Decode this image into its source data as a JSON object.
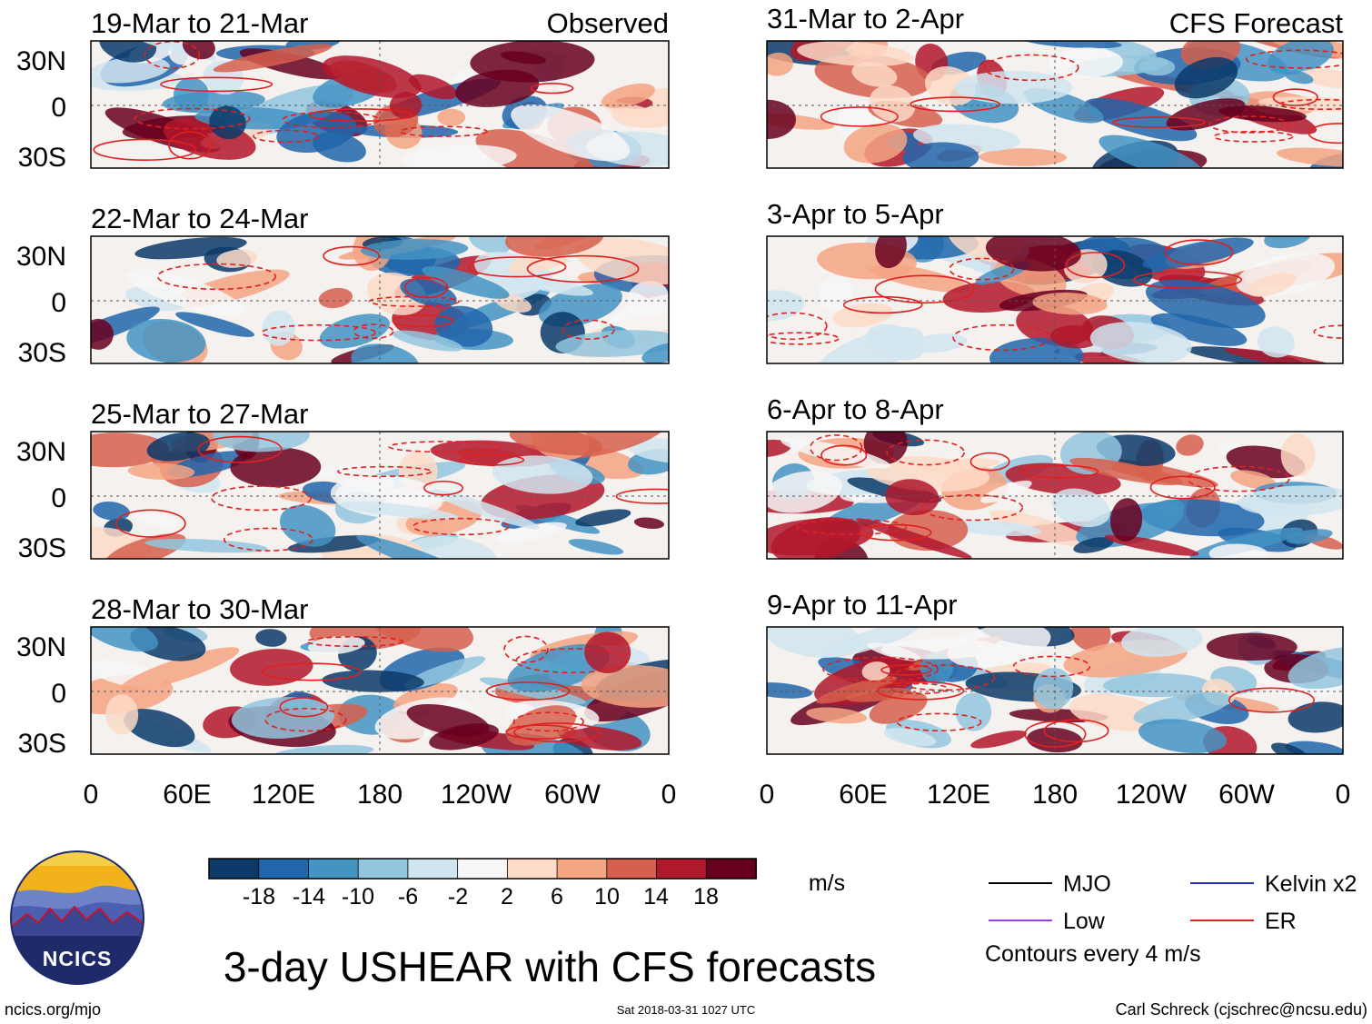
{
  "chart_data": {
    "type": "heatmap",
    "title": "3-day USHEAR with CFS forecasts",
    "units": "m/s",
    "x_ticks": [
      "0",
      "60E",
      "120E",
      "180",
      "120W",
      "60W",
      "0"
    ],
    "y_ticks": [
      "30N",
      "0",
      "30S"
    ],
    "colorbar": {
      "labels": [
        "-18",
        "-14",
        "-10",
        "-6",
        "-2",
        "2",
        "6",
        "10",
        "14",
        "18"
      ],
      "colors": [
        "#0b3a69",
        "#2166ac",
        "#4393c3",
        "#92c5de",
        "#d1e5f0",
        "#f7f7f7",
        "#fddbc7",
        "#f4a582",
        "#d6604d",
        "#b2182b",
        "#67001f"
      ]
    },
    "panels_observed": [
      {
        "label": "19-Mar to 21-Mar",
        "tag": "Observed"
      },
      {
        "label": "22-Mar to 24-Mar",
        "tag": ""
      },
      {
        "label": "25-Mar to 27-Mar",
        "tag": ""
      },
      {
        "label": "28-Mar to 30-Mar",
        "tag": ""
      }
    ],
    "panels_forecast": [
      {
        "label": "31-Mar to 2-Apr",
        "tag": "CFS Forecast"
      },
      {
        "label": "3-Apr to 5-Apr",
        "tag": ""
      },
      {
        "label": "6-Apr to 8-Apr",
        "tag": ""
      },
      {
        "label": "9-Apr to 11-Apr",
        "tag": ""
      }
    ],
    "legend": [
      {
        "name": "MJO",
        "color": "#000000"
      },
      {
        "name": "Kelvin x2",
        "color": "#2030c0"
      },
      {
        "name": "Low",
        "color": "#a040e0"
      },
      {
        "name": "ER",
        "color": "#e02020"
      }
    ],
    "contour_note": "Contours every 4 m/s"
  },
  "footer": {
    "logo_text": "NCICS",
    "url": "ncics.org/mjo",
    "timestamp": "Sat 2018-03-31 1027 UTC",
    "author": "Carl Schreck (cjschrec@ncsu.edu)"
  }
}
